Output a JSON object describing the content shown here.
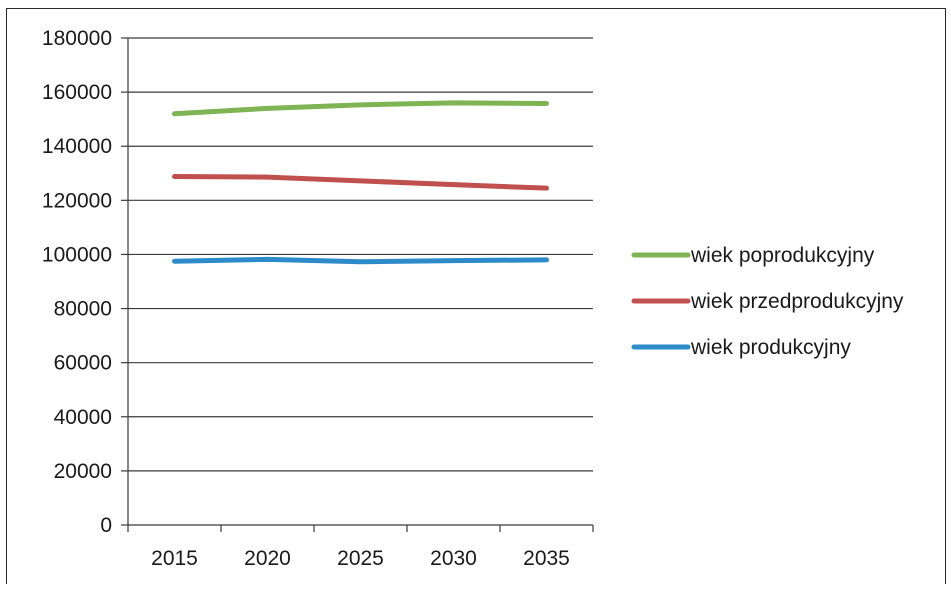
{
  "chart_data": {
    "type": "line",
    "title": "",
    "xlabel": "",
    "ylabel": "",
    "x": [
      "2015",
      "2020",
      "2025",
      "2030",
      "2035"
    ],
    "ylim": [
      0,
      180000
    ],
    "yticks": [
      "0",
      "20000",
      "40000",
      "60000",
      "80000",
      "100000",
      "120000",
      "140000",
      "160000",
      "180000"
    ],
    "grid": "horizontal",
    "legend_position": "right",
    "series": [
      {
        "name": "wiek poprodukcyjny",
        "color": "#7fb454",
        "values": [
          152000,
          154000,
          155300,
          156000,
          155800
        ]
      },
      {
        "name": "wiek przedprodukcyjny",
        "color": "#c0504d",
        "values": [
          128800,
          128600,
          127200,
          125800,
          124500
        ]
      },
      {
        "name": "wiek produkcyjny",
        "color": "#2e8bc9",
        "values": [
          97500,
          98200,
          97300,
          97700,
          98000
        ]
      }
    ]
  }
}
